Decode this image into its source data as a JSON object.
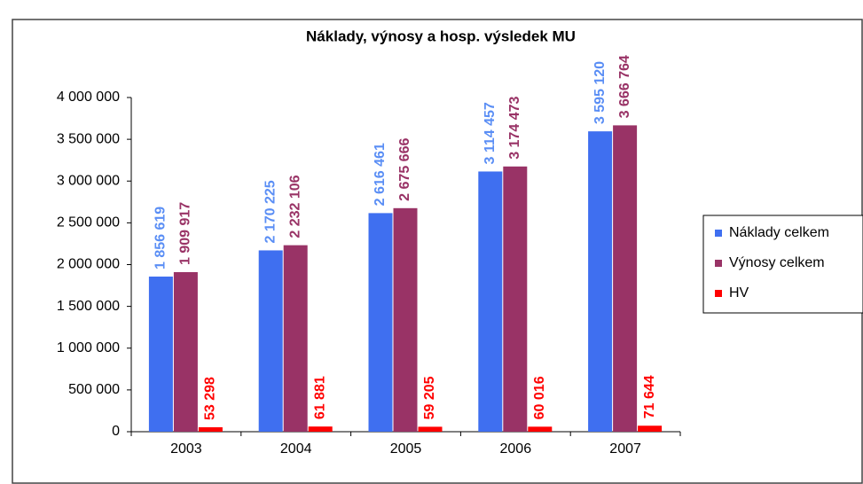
{
  "chart_data": {
    "type": "bar",
    "title": "Náklady, výnosy a hosp. výsledek MU",
    "categories": [
      "2003",
      "2004",
      "2005",
      "2006",
      "2007"
    ],
    "series": [
      {
        "name": "Náklady celkem",
        "color": "#3f6ff0",
        "label_color": "#5a8ef5",
        "values": [
          1856619,
          2170225,
          2616461,
          3114457,
          3595120
        ],
        "value_labels": [
          "1 856 619",
          "2 170 225",
          "2 616 461",
          "3 114 457",
          "3 595 120"
        ]
      },
      {
        "name": "Výnosy celkem",
        "color": "#993366",
        "label_color": "#993366",
        "values": [
          1909917,
          2232106,
          2675666,
          3174473,
          3666764
        ],
        "value_labels": [
          "1 909 917",
          "2 232 106",
          "2 675 666",
          "3 174 473",
          "3 666 764"
        ]
      },
      {
        "name": "HV",
        "color": "#ff0000",
        "label_color": "#ff0000",
        "values": [
          53298,
          61881,
          59205,
          60016,
          71644
        ],
        "value_labels": [
          "53 298",
          "61 881",
          "59 205",
          "60 016",
          "71 644"
        ]
      }
    ],
    "ylim": [
      0,
      4000000
    ],
    "yticks": [
      0,
      {
        "value": 500000,
        "label": "500 000"
      },
      {
        "value": 1000000,
        "label": "1 000 000"
      },
      {
        "value": 1500000,
        "label": "1 500 000"
      },
      {
        "value": 2000000,
        "label": "2 000 000"
      },
      {
        "value": 2500000,
        "label": "2 500 000"
      },
      {
        "value": 3000000,
        "label": "3 000 000"
      },
      {
        "value": 3500000,
        "label": "3 500 000"
      },
      {
        "value": 4000000,
        "label": "4 000 000"
      }
    ],
    "legend": "right"
  }
}
